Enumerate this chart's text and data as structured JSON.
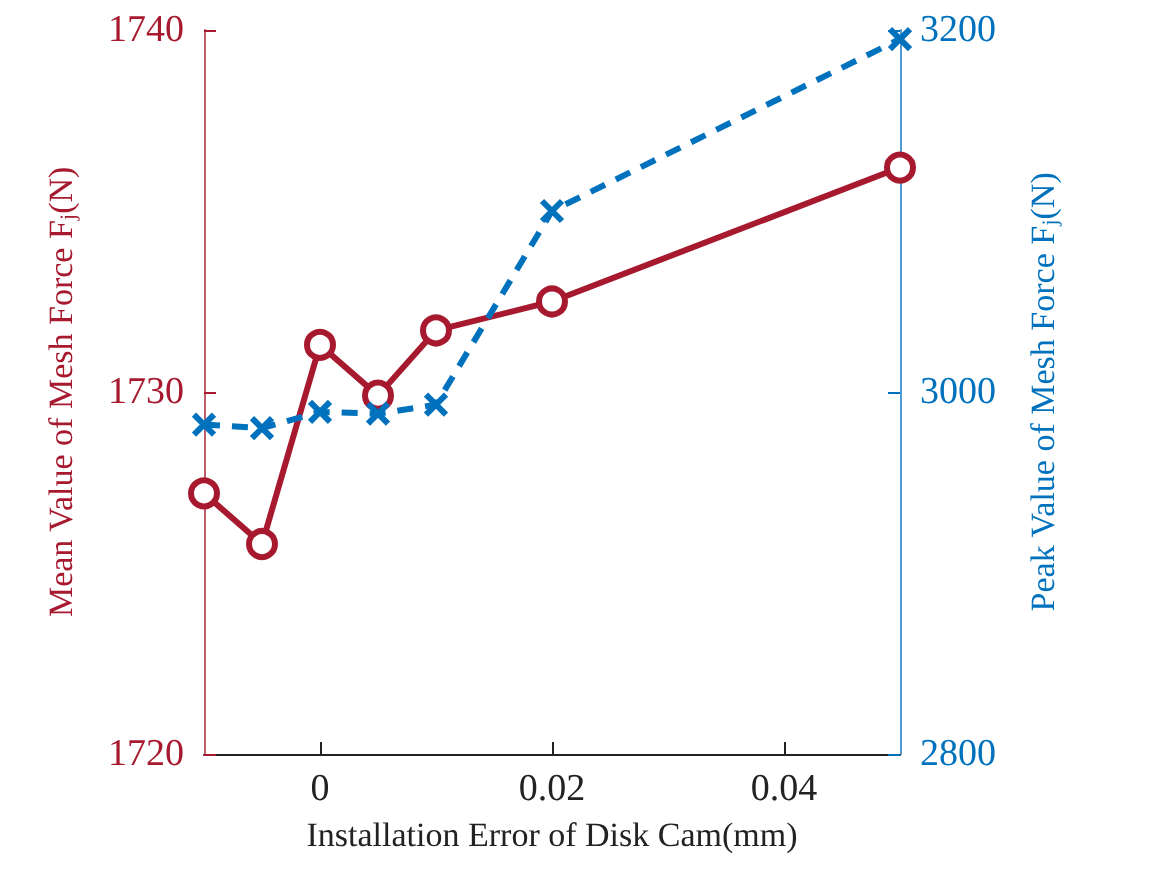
{
  "chart_data": {
    "type": "line",
    "xlabel": "Installation Error of Disk Cam(mm)",
    "ylabel": "Mean Value of Mesh Force F$_{j}$(N)",
    "y2label": "Peak Value of Mesh Force F$_{j}$(N)",
    "x": [
      -0.01,
      -0.005,
      0,
      0.005,
      0.01,
      0.02,
      0.05
    ],
    "series": [
      {
        "color": "#a6192e",
        "marker": "circle",
        "line_style": "solid",
        "values": [
          1727.2,
          1725.8,
          1731.3,
          1729.9,
          1731.7,
          1732.5,
          1736.2
        ]
      },
      {
        "color": "#0072bd",
        "marker": "cross",
        "line_style": "dashed",
        "axis": "y2",
        "values": [
          2982,
          2980,
          2989,
          2988,
          2993,
          3100,
          3195
        ]
      }
    ],
    "xlim": [
      -0.01,
      0.05
    ],
    "xticks": [
      0,
      0.02,
      0.04
    ],
    "ylim": [
      1720,
      1740
    ],
    "yticks": [
      1720,
      1730,
      1740
    ],
    "y2lim": [
      2800,
      3200
    ],
    "y2ticks": [
      2800,
      3000,
      3200
    ],
    "grid": false
  }
}
